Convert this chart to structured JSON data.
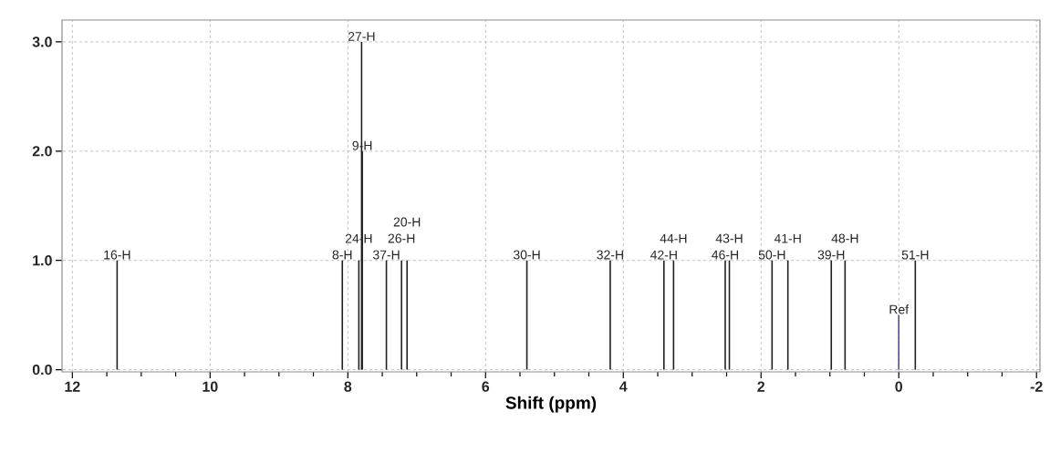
{
  "chart_data": {
    "type": "bar",
    "xlabel": "Shift (ppm)",
    "x": [
      11.35,
      8.08,
      7.84,
      7.8,
      7.79,
      7.44,
      7.22,
      7.14,
      5.4,
      4.19,
      3.41,
      3.27,
      2.52,
      2.46,
      1.84,
      1.61,
      0.98,
      0.78,
      0.0,
      -0.24
    ],
    "values": [
      1,
      1,
      1,
      3,
      2,
      1,
      1,
      1,
      1,
      1,
      1,
      1,
      1,
      1,
      1,
      1,
      1,
      1,
      0.5,
      1
    ],
    "colors": [
      "#202020",
      "#202020",
      "#202020",
      "#202020",
      "#202020",
      "#202020",
      "#202020",
      "#202020",
      "#202020",
      "#202020",
      "#202020",
      "#202020",
      "#202020",
      "#202020",
      "#202020",
      "#202020",
      "#202020",
      "#202020",
      "#4a4aa8",
      "#202020"
    ],
    "annotations": [
      {
        "text": "16-H",
        "x": 11.35,
        "y": 1
      },
      {
        "text": "8-H",
        "x": 8.08,
        "y": 1
      },
      {
        "text": "24-H",
        "x": 7.84,
        "y": 1
      },
      {
        "text": "27-H",
        "x": 7.8,
        "y": 3
      },
      {
        "text": "9-H",
        "x": 7.79,
        "y": 2
      },
      {
        "text": "37-H",
        "x": 7.44,
        "y": 1
      },
      {
        "text": "26-H",
        "x": 7.22,
        "y": 1
      },
      {
        "text": "20-H",
        "x": 7.14,
        "y": 1
      },
      {
        "text": "30-H",
        "x": 5.4,
        "y": 1
      },
      {
        "text": "32-H",
        "x": 4.19,
        "y": 1
      },
      {
        "text": "42-H",
        "x": 3.41,
        "y": 1
      },
      {
        "text": "44-H",
        "x": 3.27,
        "y": 1
      },
      {
        "text": "46-H",
        "x": 2.52,
        "y": 1
      },
      {
        "text": "43-H",
        "x": 2.46,
        "y": 1
      },
      {
        "text": "50-H",
        "x": 1.84,
        "y": 1
      },
      {
        "text": "41-H",
        "x": 1.61,
        "y": 1
      },
      {
        "text": "39-H",
        "x": 0.98,
        "y": 1
      },
      {
        "text": "48-H",
        "x": 0.78,
        "y": 1
      },
      {
        "text": "Ref",
        "x": 0.0,
        "y": 0.5
      },
      {
        "text": "51-H",
        "x": -0.24,
        "y": 1
      }
    ],
    "xlim": [
      12.15,
      -2.05
    ],
    "ylim": [
      -0.02,
      3.2
    ],
    "xticks": [
      12,
      10,
      8,
      6,
      4,
      2,
      0,
      -2
    ],
    "yticks": [
      {
        "value": 0,
        "label": "0.0"
      },
      {
        "value": 1,
        "label": "1.0"
      },
      {
        "value": 2,
        "label": "2.0"
      },
      {
        "value": 3,
        "label": "3.0"
      }
    ],
    "grid": true
  }
}
